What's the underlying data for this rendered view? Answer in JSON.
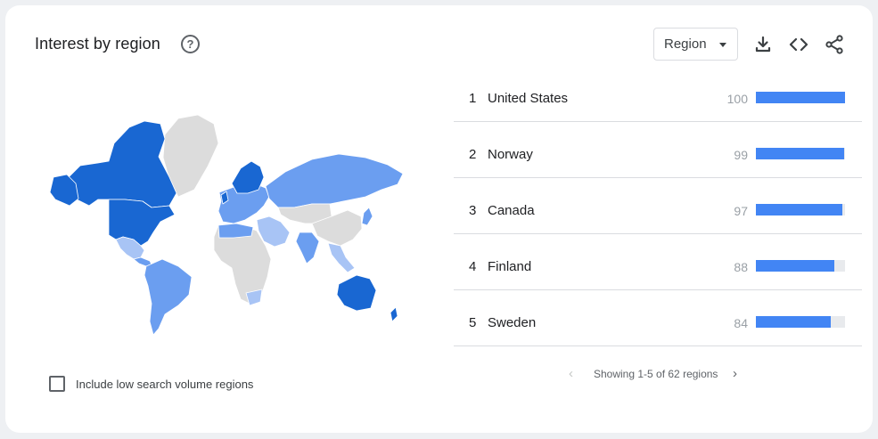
{
  "header": {
    "title": "Interest by region",
    "help_glyph": "?",
    "region_select": {
      "selected": "Region"
    },
    "tools": [
      "download-icon",
      "embed-code-icon",
      "share-icon"
    ]
  },
  "map": {
    "colors": {
      "high": "#1967d2",
      "mid": "#6b9ef0",
      "low": "#a8c4f5",
      "none": "#dcdcdc",
      "border": "#ffffff"
    }
  },
  "ranking": {
    "rows": [
      {
        "rank": "1",
        "name": "United States",
        "value": "100",
        "level": 100
      },
      {
        "rank": "2",
        "name": "Norway",
        "value": "99",
        "level": 99
      },
      {
        "rank": "3",
        "name": "Canada",
        "value": "97",
        "level": 97
      },
      {
        "rank": "4",
        "name": "Finland",
        "value": "88",
        "level": 88
      },
      {
        "rank": "5",
        "name": "Sweden",
        "value": "84",
        "level": 84
      }
    ],
    "bar_color": "#4285f4",
    "track_color": "#e8eaed"
  },
  "pager": {
    "prev_glyph": "‹",
    "text": "Showing 1-5 of 62 regions",
    "next_glyph": "›"
  },
  "filters": {
    "low_volume_label": "Include low search volume regions",
    "low_volume_checked": false
  }
}
